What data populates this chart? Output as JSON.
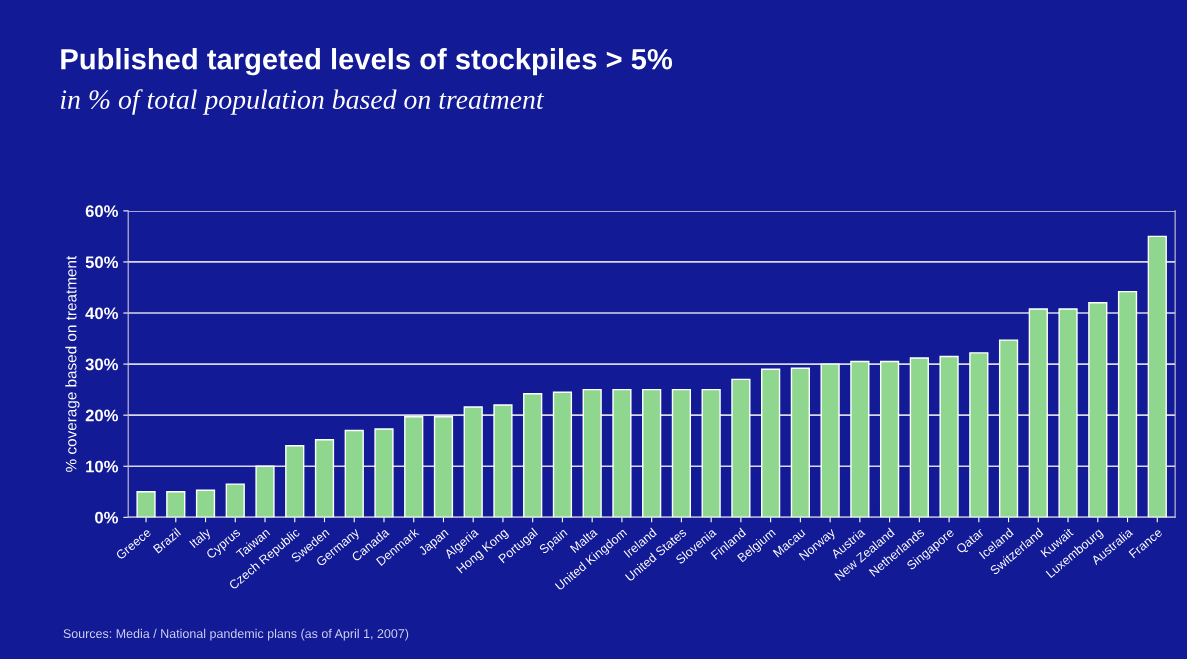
{
  "chart_data": {
    "type": "bar",
    "title": "Published targeted levels of stockpiles > 5%",
    "subtitle": "in % of total population based on treatment",
    "ylabel": "% coverage based on treatment",
    "categories": [
      "Greece",
      "Brazil",
      "Italy",
      "Cyprus",
      "Taiwan",
      "Czech Republic",
      "Sweden",
      "Germany",
      "Canada",
      "Denmark",
      "Japan",
      "Algeria",
      "Hong Kong",
      "Portugal",
      "Spain",
      "Malta",
      "United Kingdom",
      "Ireland",
      "United States",
      "Slovenia",
      "Finland",
      "Belgium",
      "Macau",
      "Norway",
      "Austria",
      "New Zealand",
      "Netherlands",
      "Singapore",
      "Qatar",
      "Iceland",
      "Switzerland",
      "Kuwait",
      "Luxembourg",
      "Australia",
      "France"
    ],
    "values": [
      5,
      5,
      5.3,
      6.5,
      10,
      14,
      15.2,
      17,
      17.3,
      19.7,
      19.7,
      21.6,
      22,
      24.2,
      24.5,
      25,
      25,
      25,
      25,
      25,
      27,
      29,
      29.2,
      30,
      30.5,
      30.5,
      31.2,
      31.5,
      32.2,
      34.7,
      40.8,
      40.8,
      42,
      44.2,
      55
    ],
    "color": "#8fd68f",
    "ylim": [
      0,
      60
    ],
    "yticks": [
      {
        "value": 0,
        "label": "0%"
      },
      {
        "value": 10,
        "label": "10%"
      },
      {
        "value": 20,
        "label": "20%"
      },
      {
        "value": 30,
        "label": "30%"
      },
      {
        "value": 40,
        "label": "40%"
      },
      {
        "value": 50,
        "label": "50%"
      },
      {
        "value": 60,
        "label": "60%"
      }
    ],
    "grid": "y",
    "annotations": [
      "Sources: Media / National pandemic plans (as of April 1, 2007)"
    ]
  }
}
